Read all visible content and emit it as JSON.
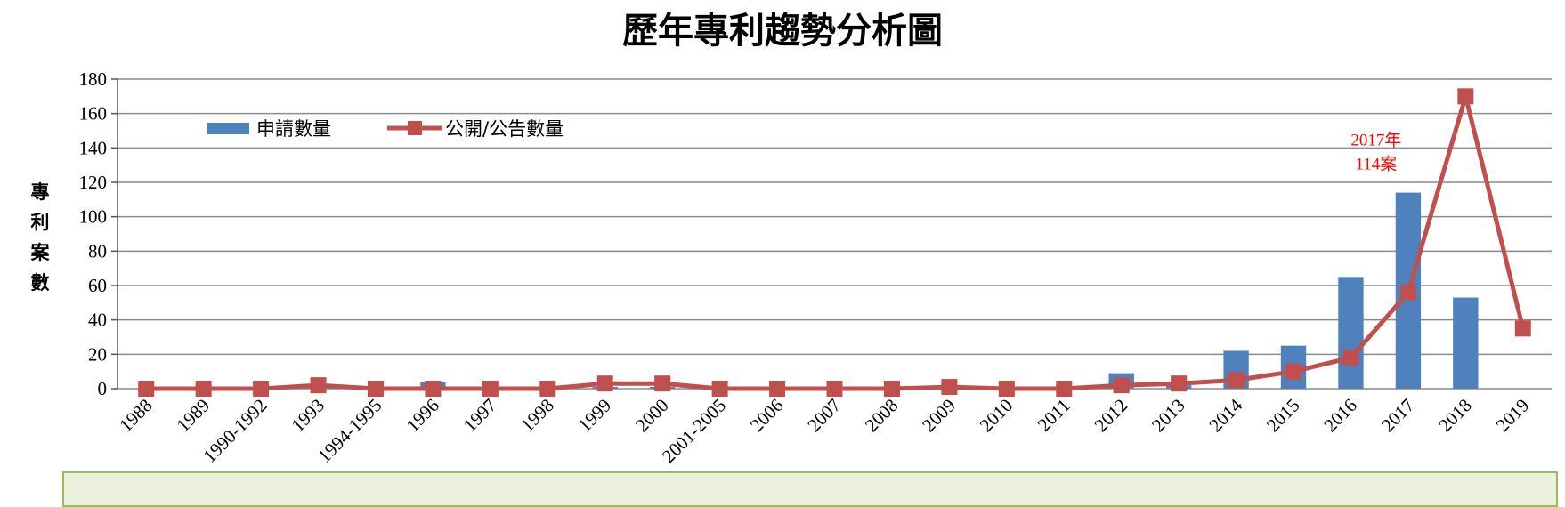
{
  "chart_data": {
    "type": "bar",
    "title": "歷年專利趨勢分析圖",
    "ylabel": "專利案數",
    "xlabel": "",
    "ylim": [
      0,
      180
    ],
    "yticks": [
      0,
      20,
      40,
      60,
      80,
      100,
      120,
      140,
      160,
      180
    ],
    "grid": true,
    "legend_position": "top-left",
    "categories": [
      "1988",
      "1989",
      "1990-1992",
      "1993",
      "1994-1995",
      "1996",
      "1997",
      "1998",
      "1999",
      "2000",
      "2001-2005",
      "2006",
      "2007",
      "2008",
      "2009",
      "2010",
      "2011",
      "2012",
      "2013",
      "2014",
      "2015",
      "2016",
      "2017",
      "2018",
      "2019"
    ],
    "series": [
      {
        "name": "申請數量",
        "kind": "bar",
        "color": "#4f81bd",
        "values": [
          0,
          0,
          0,
          2,
          0,
          4,
          0,
          0,
          1,
          1,
          0,
          0,
          0,
          0,
          1,
          0,
          0,
          9,
          2,
          22,
          25,
          65,
          114,
          53,
          0
        ]
      },
      {
        "name": "公開/公告數量",
        "kind": "line",
        "color": "#c0504d",
        "values": [
          0,
          0,
          0,
          2,
          0,
          0,
          0,
          0,
          3,
          3,
          0,
          0,
          0,
          0,
          1,
          0,
          0,
          2,
          3,
          5,
          10,
          18,
          56,
          170,
          35
        ]
      }
    ],
    "annotations": [
      {
        "category": "2017",
        "lines": [
          "2017年",
          "114案"
        ],
        "color": "#ff0000"
      }
    ]
  }
}
